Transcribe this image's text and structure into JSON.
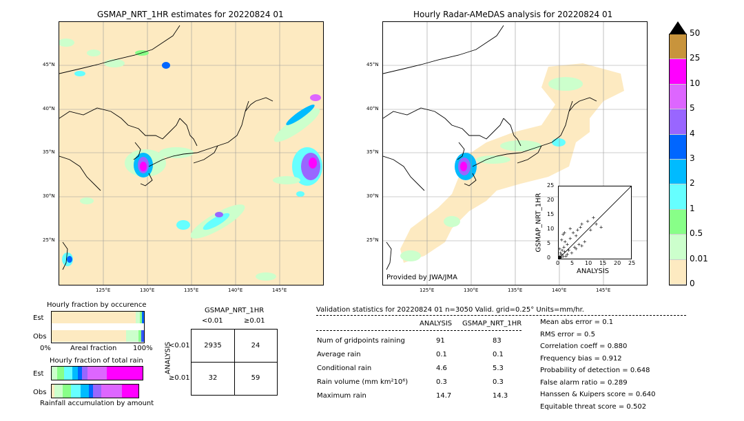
{
  "left_map": {
    "title": "GSMAP_NRT_1HR estimates for 20220824 01",
    "lat_ticks": [
      "45°N",
      "40°N",
      "35°N",
      "30°N",
      "25°N"
    ],
    "lon_ticks": [
      "125°E",
      "130°E",
      "135°E",
      "140°E",
      "145°E"
    ],
    "background": "#fdeac1"
  },
  "right_map": {
    "title": "Hourly Radar-AMeDAS analysis for 20220824 01",
    "lat_ticks": [
      "45°N",
      "40°N",
      "35°N",
      "30°N",
      "25°N"
    ],
    "lon_ticks": [
      "125°E",
      "130°E",
      "135°E",
      "140°E",
      "145°E"
    ],
    "credit": "Provided by JWA/JMA"
  },
  "colorbar": {
    "labels": [
      "50",
      "25",
      "10",
      "5",
      "4",
      "3",
      "2",
      "1",
      "0.5",
      "0.01",
      "0"
    ],
    "colors": [
      "#c8943c",
      "#ff00ff",
      "#dd66ff",
      "#9966ff",
      "#0066ff",
      "#00bbff",
      "#66ffff",
      "#88ff88",
      "#ccffcc",
      "#fdeac1"
    ]
  },
  "chart_data": [
    {
      "type": "scatter",
      "xlabel": "ANALYSIS",
      "ylabel": "GSMAP_NRT_1HR",
      "xlim": [
        0,
        25
      ],
      "ylim": [
        0,
        25
      ],
      "ticks": [
        "0",
        "5",
        "10",
        "15",
        "20",
        "25"
      ],
      "x": [
        0.1,
        0.2,
        0.3,
        0.4,
        0.5,
        0.6,
        0.8,
        1.0,
        1.2,
        1.5,
        1.8,
        2.0,
        2.2,
        2.5,
        3.0,
        3.5,
        4.0,
        4.5,
        5.0,
        5.5,
        6.0,
        6.5,
        7.0,
        7.5,
        8.0,
        9.0,
        10.0,
        11.0,
        12.0,
        13.0,
        14.7,
        0.3,
        0.5,
        1.0,
        2.0,
        3.0,
        4.0,
        6.0,
        8.0,
        1.5
      ],
      "y": [
        0.1,
        0.5,
        0.2,
        1.0,
        0.3,
        2.0,
        0.5,
        1.5,
        3.0,
        0.8,
        4.0,
        2.5,
        6.0,
        1.0,
        5.0,
        3.0,
        7.0,
        2.0,
        9.0,
        4.0,
        8.0,
        10.0,
        5.0,
        11.0,
        12.0,
        6.0,
        13.0,
        10.0,
        14.3,
        12.0,
        11.0,
        3.5,
        0.8,
        6.5,
        9.0,
        1.5,
        10.5,
        3.5,
        4.5,
        8.5
      ]
    },
    {
      "type": "bar",
      "title": "Hourly fraction by occurence",
      "categories": [
        "Est",
        "Obs"
      ],
      "xlabel": "Areal fraction",
      "x_ticks": [
        "0%",
        "100%"
      ]
    },
    {
      "type": "bar",
      "title": "Hourly fraction of total rain",
      "categories": [
        "Est",
        "Obs"
      ],
      "xlabel": "Rainfall accumulation by amount"
    },
    {
      "type": "table",
      "col_header_title": "GSMAP_NRT_1HR",
      "col_headers": [
        "<0.01",
        "≥0.01"
      ],
      "row_header_title": "ANALYSIS",
      "row_headers": [
        "<0.01",
        "≥0.01"
      ],
      "cells": [
        [
          "2935",
          "24"
        ],
        [
          "32",
          "59"
        ]
      ]
    }
  ],
  "validation": {
    "title": "Validation statistics for 20220824 01  n=3050 Valid. grid=0.25° Units=mm/hr.",
    "col_analysis": "ANALYSIS",
    "col_gsmap": "GSMAP_NRT_1HR",
    "rows": [
      {
        "label": "Num of gridpoints raining",
        "analysis": "91",
        "gsmap": "83"
      },
      {
        "label": "Average rain",
        "analysis": "0.1",
        "gsmap": "0.1"
      },
      {
        "label": "Conditional rain",
        "analysis": "4.6",
        "gsmap": "5.3"
      },
      {
        "label": "Rain volume (mm km²10⁶)",
        "analysis": "0.3",
        "gsmap": "0.3"
      },
      {
        "label": "Maximum rain",
        "analysis": "14.7",
        "gsmap": "14.3"
      }
    ],
    "scores": [
      "Mean abs error =    0.1",
      "RMS error =    0.5",
      "Correlation coeff =  0.880",
      "Frequency bias =  0.912",
      "Probability of detection =  0.648",
      "False alarm ratio =  0.289",
      "Hanssen & Kuipers score =  0.640",
      "Equitable threat score =  0.502"
    ]
  }
}
